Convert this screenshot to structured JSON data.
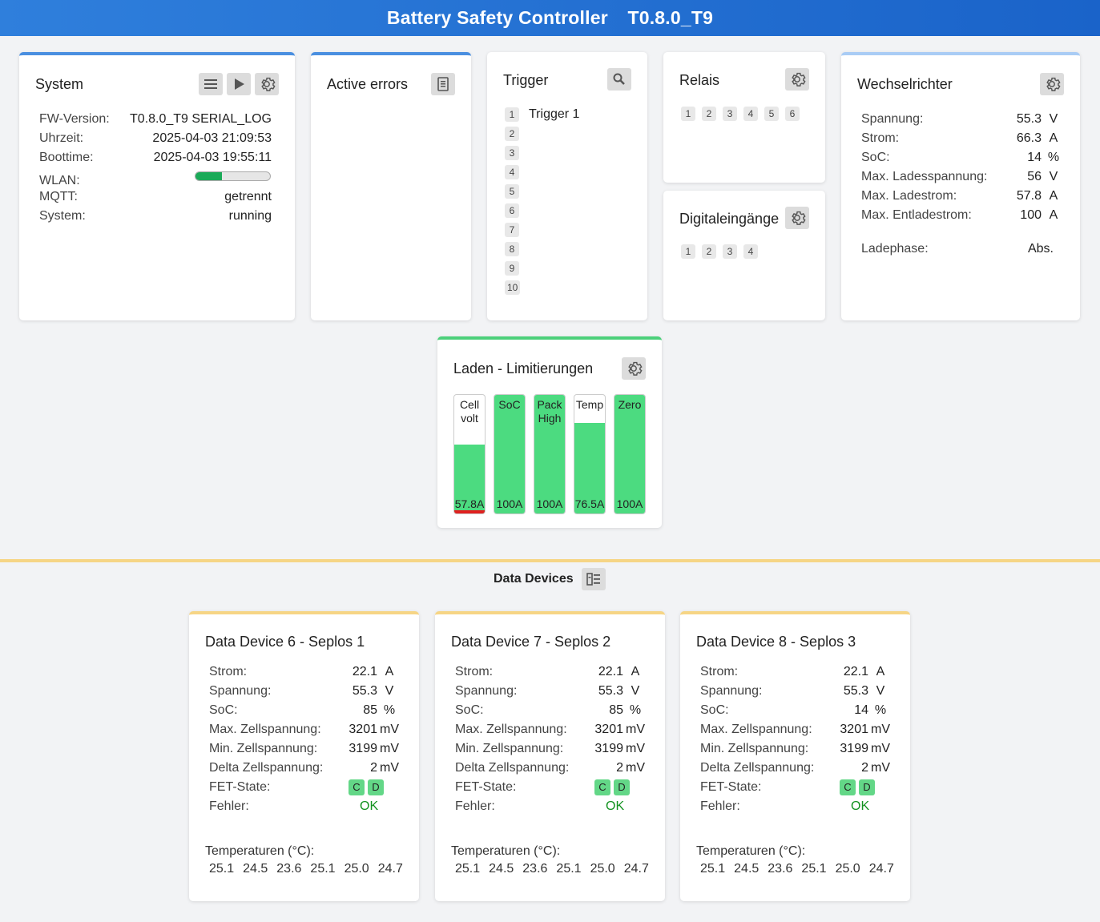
{
  "header": {
    "title": "Battery Safety Controller",
    "version": "T0.8.0_T9"
  },
  "system": {
    "title": "System",
    "rows": [
      {
        "k": "FW-Version:",
        "v": "T0.8.0_T9 SERIAL_LOG"
      },
      {
        "k": "Uhrzeit:",
        "v": "2025-04-03 21:09:53"
      },
      {
        "k": "Boottime:",
        "v": "2025-04-03 19:55:11"
      }
    ],
    "wlan_label": "WLAN:",
    "wlan_fraction": 0.35,
    "mqtt_label": "MQTT:",
    "mqtt_value": "getrennt",
    "state_label": "System:",
    "state_value": "running"
  },
  "errors": {
    "title": "Active errors"
  },
  "trigger": {
    "title": "Trigger",
    "items": [
      "1",
      "2",
      "3",
      "4",
      "5",
      "6",
      "7",
      "8",
      "9",
      "10"
    ],
    "first_name": "Trigger 1"
  },
  "relais": {
    "title": "Relais",
    "items": [
      "1",
      "2",
      "3",
      "4",
      "5",
      "6"
    ]
  },
  "digital": {
    "title": "Digitaleingänge",
    "items": [
      "1",
      "2",
      "3",
      "4"
    ]
  },
  "inverter": {
    "title": "Wechselrichter",
    "rows": [
      {
        "k": "Spannung:",
        "v": "55.3",
        "u": "V"
      },
      {
        "k": "Strom:",
        "v": "66.3",
        "u": "A"
      },
      {
        "k": "SoC:",
        "v": "14",
        "u": "%"
      },
      {
        "k": "Max. Ladesspannung:",
        "v": "56",
        "u": "V"
      },
      {
        "k": "Max. Ladestrom:",
        "v": "57.8",
        "u": "A"
      },
      {
        "k": "Max. Entladestrom:",
        "v": "100",
        "u": "A"
      }
    ],
    "phase_label": "Ladephase:",
    "phase_value": "Abs."
  },
  "charge": {
    "title": "Laden - Limitierungen",
    "columns": [
      {
        "label1": "Cell",
        "label2": "volt",
        "value": "57.8A",
        "fill": 0.578,
        "active": true
      },
      {
        "label1": "SoC",
        "label2": "",
        "value": "100A",
        "fill": 1.0,
        "active": false
      },
      {
        "label1": "Pack",
        "label2": "High",
        "value": "100A",
        "fill": 1.0,
        "active": false
      },
      {
        "label1": "Temp",
        "label2": "",
        "value": "76.5A",
        "fill": 0.765,
        "active": false
      },
      {
        "label1": "Zero",
        "label2": "",
        "value": "100A",
        "fill": 1.0,
        "active": false
      }
    ]
  },
  "data_devices": {
    "title": "Data Devices",
    "labels": {
      "strom": "Strom:",
      "spannung": "Spannung:",
      "soc": "SoC:",
      "max_cell": "Max. Zellspannung:",
      "min_cell": "Min. Zellspannung:",
      "delta_cell": "Delta Zellspannung:",
      "fet": "FET-State:",
      "error": "Fehler:",
      "temps": "Temperaturen (°C):"
    },
    "units": {
      "a": "A",
      "v": "V",
      "pct": "%",
      "mv": "mV"
    },
    "fet_c": "C",
    "fet_d": "D",
    "devices": [
      {
        "title": "Data Device 6 - Seplos 1",
        "strom": "22.1",
        "spannung": "55.3",
        "soc": "85",
        "max_cell": "3201",
        "min_cell": "3199",
        "delta_cell": "2",
        "error": "OK",
        "temps": [
          "25.1",
          "24.5",
          "23.6",
          "25.1",
          "25.0",
          "24.7"
        ]
      },
      {
        "title": "Data Device 7 - Seplos 2",
        "strom": "22.1",
        "spannung": "55.3",
        "soc": "85",
        "max_cell": "3201",
        "min_cell": "3199",
        "delta_cell": "2",
        "error": "OK",
        "temps": [
          "25.1",
          "24.5",
          "23.6",
          "25.1",
          "25.0",
          "24.7"
        ]
      },
      {
        "title": "Data Device 8 - Seplos 3",
        "strom": "22.1",
        "spannung": "55.3",
        "soc": "14",
        "max_cell": "3201",
        "min_cell": "3199",
        "delta_cell": "2",
        "error": "OK",
        "temps": [
          "25.1",
          "24.5",
          "23.6",
          "25.1",
          "25.0",
          "24.7"
        ]
      }
    ]
  },
  "colors": {
    "header": "#2f7fdc",
    "ok": "#12921f",
    "fill": "#4cdb80",
    "accent_yellow": "#f6d585"
  }
}
